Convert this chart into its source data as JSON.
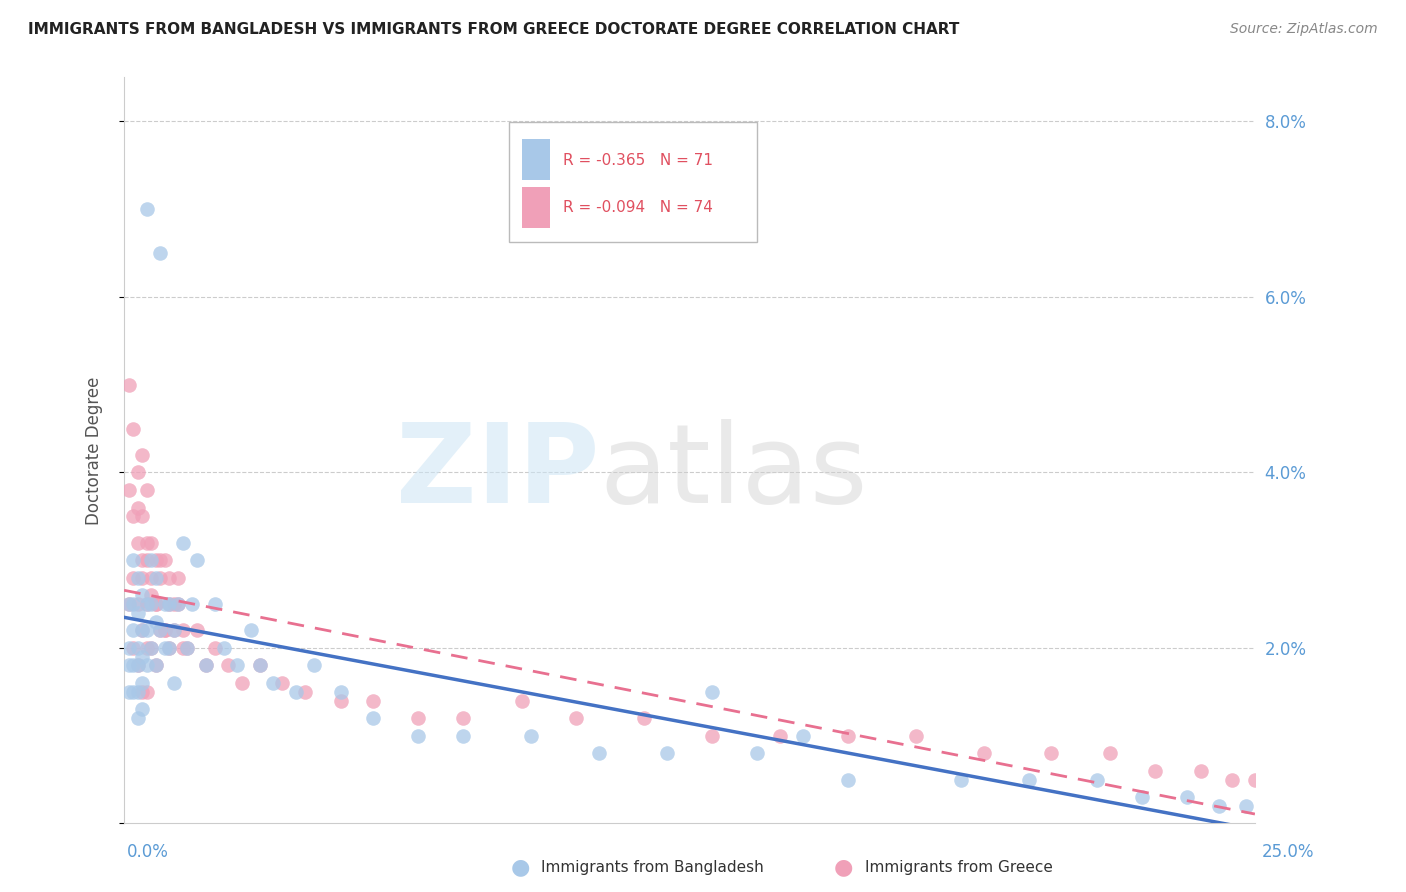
{
  "title": "IMMIGRANTS FROM BANGLADESH VS IMMIGRANTS FROM GREECE DOCTORATE DEGREE CORRELATION CHART",
  "source": "Source: ZipAtlas.com",
  "ylabel": "Doctorate Degree",
  "legend_bangladesh": "R = -0.365   N = 71",
  "legend_greece": "R = -0.094   N = 74",
  "color_bangladesh": "#a8c8e8",
  "color_greece": "#f0a0b8",
  "color_trendline_bangladesh": "#4472c4",
  "color_trendline_greece": "#e87090",
  "xlim": [
    0,
    0.25
  ],
  "ylim": [
    0,
    0.085
  ],
  "y_ticks": [
    0,
    0.02,
    0.04,
    0.06,
    0.08
  ],
  "y_tick_labels": [
    "",
    "2.0%",
    "4.0%",
    "6.0%",
    "8.0%"
  ],
  "bd_x": [
    0.001,
    0.001,
    0.001,
    0.001,
    0.002,
    0.002,
    0.002,
    0.002,
    0.002,
    0.003,
    0.003,
    0.003,
    0.003,
    0.003,
    0.003,
    0.004,
    0.004,
    0.004,
    0.004,
    0.004,
    0.005,
    0.005,
    0.005,
    0.005,
    0.006,
    0.006,
    0.006,
    0.007,
    0.007,
    0.007,
    0.008,
    0.008,
    0.009,
    0.009,
    0.01,
    0.01,
    0.011,
    0.011,
    0.012,
    0.013,
    0.014,
    0.015,
    0.016,
    0.018,
    0.02,
    0.022,
    0.025,
    0.028,
    0.03,
    0.033,
    0.038,
    0.042,
    0.048,
    0.055,
    0.065,
    0.075,
    0.09,
    0.105,
    0.12,
    0.14,
    0.16,
    0.185,
    0.2,
    0.215,
    0.225,
    0.235,
    0.242,
    0.248,
    0.252,
    0.13,
    0.15
  ],
  "bd_y": [
    0.025,
    0.02,
    0.018,
    0.015,
    0.03,
    0.025,
    0.022,
    0.018,
    0.015,
    0.028,
    0.024,
    0.02,
    0.018,
    0.015,
    0.012,
    0.026,
    0.022,
    0.019,
    0.016,
    0.013,
    0.025,
    0.07,
    0.022,
    0.018,
    0.03,
    0.025,
    0.02,
    0.028,
    0.023,
    0.018,
    0.065,
    0.022,
    0.025,
    0.02,
    0.025,
    0.02,
    0.022,
    0.016,
    0.025,
    0.032,
    0.02,
    0.025,
    0.03,
    0.018,
    0.025,
    0.02,
    0.018,
    0.022,
    0.018,
    0.016,
    0.015,
    0.018,
    0.015,
    0.012,
    0.01,
    0.01,
    0.01,
    0.008,
    0.008,
    0.008,
    0.005,
    0.005,
    0.005,
    0.005,
    0.003,
    0.003,
    0.002,
    0.002,
    0.001,
    0.015,
    0.01
  ],
  "gr_x": [
    0.001,
    0.001,
    0.001,
    0.002,
    0.002,
    0.002,
    0.002,
    0.003,
    0.003,
    0.003,
    0.003,
    0.004,
    0.004,
    0.004,
    0.004,
    0.004,
    0.005,
    0.005,
    0.005,
    0.005,
    0.005,
    0.006,
    0.006,
    0.006,
    0.007,
    0.007,
    0.007,
    0.008,
    0.008,
    0.009,
    0.009,
    0.01,
    0.01,
    0.011,
    0.012,
    0.013,
    0.014,
    0.016,
    0.018,
    0.02,
    0.023,
    0.026,
    0.03,
    0.035,
    0.04,
    0.048,
    0.055,
    0.065,
    0.075,
    0.088,
    0.1,
    0.115,
    0.13,
    0.145,
    0.16,
    0.175,
    0.19,
    0.205,
    0.218,
    0.228,
    0.238,
    0.245,
    0.25,
    0.003,
    0.004,
    0.005,
    0.006,
    0.007,
    0.008,
    0.009,
    0.01,
    0.011,
    0.012,
    0.013
  ],
  "gr_y": [
    0.05,
    0.038,
    0.025,
    0.045,
    0.035,
    0.028,
    0.02,
    0.04,
    0.032,
    0.025,
    0.018,
    0.042,
    0.035,
    0.028,
    0.022,
    0.015,
    0.038,
    0.03,
    0.025,
    0.02,
    0.015,
    0.032,
    0.026,
    0.02,
    0.03,
    0.025,
    0.018,
    0.028,
    0.022,
    0.03,
    0.022,
    0.028,
    0.02,
    0.025,
    0.028,
    0.022,
    0.02,
    0.022,
    0.018,
    0.02,
    0.018,
    0.016,
    0.018,
    0.016,
    0.015,
    0.014,
    0.014,
    0.012,
    0.012,
    0.014,
    0.012,
    0.012,
    0.01,
    0.01,
    0.01,
    0.01,
    0.008,
    0.008,
    0.008,
    0.006,
    0.006,
    0.005,
    0.005,
    0.036,
    0.03,
    0.032,
    0.028,
    0.025,
    0.03,
    0.022,
    0.025,
    0.022,
    0.025,
    0.02
  ]
}
